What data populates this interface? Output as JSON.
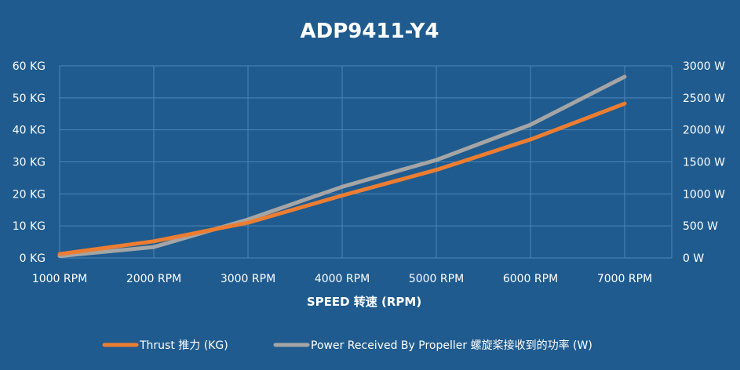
{
  "chart_data": {
    "type": "line",
    "title": "ADP9411-Y4",
    "xlabel": "SPEED 转速 (RPM)",
    "categories": [
      "1000 RPM",
      "2000 RPM",
      "3000 RPM",
      "4000 RPM",
      "5000 RPM",
      "6000 RPM",
      "7000 RPM"
    ],
    "y_left": {
      "ticks": [
        "0 KG",
        "10 KG",
        "20 KG",
        "30 KG",
        "40 KG",
        "50 KG",
        "60 KG"
      ],
      "ylim": [
        0,
        60
      ]
    },
    "y_right": {
      "ticks": [
        "0 W",
        "500 W",
        "1000 W",
        "1500 W",
        "2000 W",
        "2500 W",
        "3000 W"
      ],
      "ylim": [
        0,
        3000
      ]
    },
    "grid": true,
    "legend_position": "bottom",
    "series": [
      {
        "name": "Thrust 推力 (KG)",
        "axis": "left",
        "color": "#ed7d31",
        "values": [
          1.2,
          5.2,
          11.0,
          19.5,
          27.5,
          37.0,
          48.2
        ]
      },
      {
        "name": "Power Received By Propeller 螺旋桨接收到的功率 (W)",
        "axis": "right",
        "color": "#a5a5a5",
        "values": [
          30,
          170,
          600,
          1110,
          1530,
          2080,
          2830
        ]
      }
    ]
  }
}
